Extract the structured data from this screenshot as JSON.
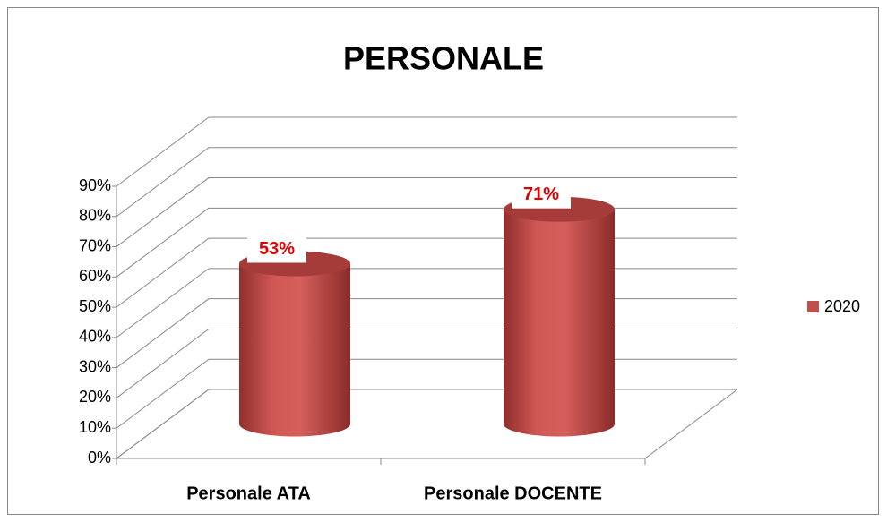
{
  "chart_data": {
    "type": "bar",
    "title": "PERSONALE",
    "categories": [
      "Personale ATA",
      "Personale DOCENTE"
    ],
    "series": [
      {
        "name": "2020",
        "color": "#c0504d",
        "values": [
          53,
          71
        ],
        "value_labels": [
          "53%",
          "71%"
        ]
      }
    ],
    "ylim": [
      0,
      90
    ],
    "yticks": [
      {
        "value": 0,
        "label": "0%"
      },
      {
        "value": 10,
        "label": "10%"
      },
      {
        "value": 20,
        "label": "20%"
      },
      {
        "value": 30,
        "label": "30%"
      },
      {
        "value": 40,
        "label": "40%"
      },
      {
        "value": 50,
        "label": "50%"
      },
      {
        "value": 60,
        "label": "60%"
      },
      {
        "value": 70,
        "label": "70%"
      },
      {
        "value": 80,
        "label": "80%"
      },
      {
        "value": 90,
        "label": "90%"
      }
    ],
    "grid": true,
    "legend": "right"
  }
}
